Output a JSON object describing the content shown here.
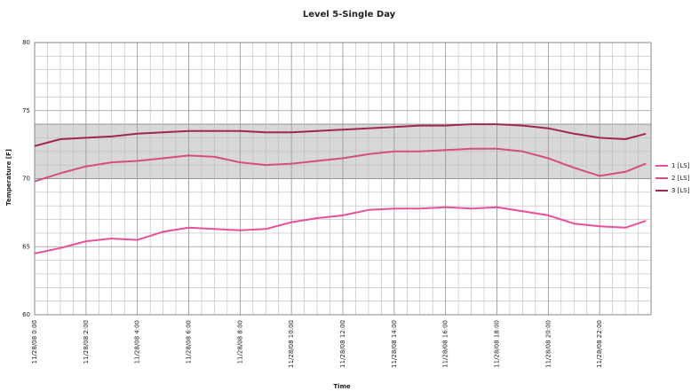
{
  "chart_data": {
    "type": "line",
    "title": "Level 5-Single Day",
    "ylabel": "Temperature [F]",
    "xlabel": "Time",
    "x": [
      0,
      1,
      2,
      3,
      4,
      5,
      6,
      7,
      8,
      9,
      10,
      11,
      12,
      13,
      14,
      15,
      16,
      17,
      18,
      19,
      20,
      21,
      22,
      23,
      23.8
    ],
    "series": [
      {
        "name": "1 [LS]",
        "color": "#e8509a",
        "values": [
          64.5,
          64.9,
          65.4,
          65.6,
          65.5,
          66.1,
          66.4,
          66.3,
          66.2,
          66.3,
          66.8,
          67.1,
          67.3,
          67.7,
          67.8,
          67.8,
          67.9,
          67.8,
          67.9,
          67.6,
          67.3,
          66.7,
          66.5,
          66.4,
          66.9
        ]
      },
      {
        "name": "2 [LS]",
        "color": "#d4507a",
        "values": [
          69.8,
          70.4,
          70.9,
          71.2,
          71.3,
          71.5,
          71.7,
          71.6,
          71.2,
          71.0,
          71.1,
          71.3,
          71.5,
          71.8,
          72.0,
          72.0,
          72.1,
          72.2,
          72.2,
          72.0,
          71.5,
          70.8,
          70.2,
          70.5,
          71.1
        ]
      },
      {
        "name": "3 [LS]",
        "color": "#a02848",
        "values": [
          72.4,
          72.9,
          73.0,
          73.1,
          73.3,
          73.4,
          73.5,
          73.5,
          73.5,
          73.4,
          73.4,
          73.5,
          73.6,
          73.7,
          73.8,
          73.9,
          73.9,
          74.0,
          74.0,
          73.9,
          73.7,
          73.3,
          73.0,
          72.9,
          73.3
        ]
      }
    ],
    "band": [
      70,
      74
    ],
    "band_color": "#d8d8d8",
    "xlim": [
      0,
      24
    ],
    "xticks": [
      {
        "value": 0,
        "label": "11/28/08 0:00"
      },
      {
        "value": 2,
        "label": "11/28/08 2:00"
      },
      {
        "value": 4,
        "label": "11/28/08 4:00"
      },
      {
        "value": 6,
        "label": "11/28/08 6:00"
      },
      {
        "value": 8,
        "label": "11/28/08 8:00"
      },
      {
        "value": 10,
        "label": "11/28/08 10:00"
      },
      {
        "value": 12,
        "label": "11/28/08 12:00"
      },
      {
        "value": 14,
        "label": "11/28/08 14:00"
      },
      {
        "value": 16,
        "label": "11/28/08 16:00"
      },
      {
        "value": 18,
        "label": "11/28/08 18:00"
      },
      {
        "value": 20,
        "label": "11/28/08 20:00"
      },
      {
        "value": 22,
        "label": "11/28/08 22:00"
      }
    ],
    "ylim": [
      60,
      80
    ],
    "yticks": [
      60,
      65,
      70,
      75,
      80
    ],
    "grid": true,
    "xminor": 0.5,
    "yminor": 1,
    "legend": "right"
  }
}
